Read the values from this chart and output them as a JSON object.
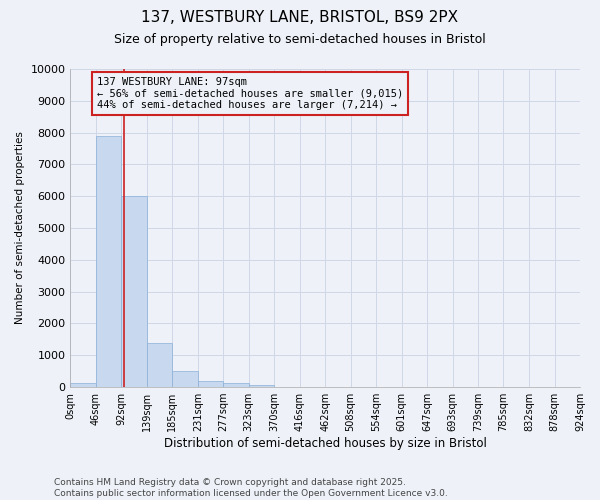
{
  "title_line1": "137, WESTBURY LANE, BRISTOL, BS9 2PX",
  "title_line2": "Size of property relative to semi-detached houses in Bristol",
  "xlabel": "Distribution of semi-detached houses by size in Bristol",
  "ylabel": "Number of semi-detached properties",
  "annotation_text": "137 WESTBURY LANE: 97sqm\n← 56% of semi-detached houses are smaller (9,015)\n44% of semi-detached houses are larger (7,214) →",
  "bin_edges": [
    0,
    46,
    92,
    139,
    185,
    231,
    277,
    323,
    370,
    416,
    462,
    508,
    554,
    601,
    647,
    693,
    739,
    785,
    832,
    878,
    924
  ],
  "bin_labels": [
    "0sqm",
    "46sqm",
    "92sqm",
    "139sqm",
    "185sqm",
    "231sqm",
    "277sqm",
    "323sqm",
    "370sqm",
    "416sqm",
    "462sqm",
    "508sqm",
    "554sqm",
    "601sqm",
    "647sqm",
    "693sqm",
    "739sqm",
    "785sqm",
    "832sqm",
    "878sqm",
    "924sqm"
  ],
  "bar_heights": [
    130,
    7900,
    6000,
    1380,
    500,
    200,
    130,
    60,
    0,
    0,
    0,
    0,
    0,
    0,
    0,
    0,
    0,
    0,
    0,
    0
  ],
  "bar_color": "#c8d8ee",
  "bar_edge_color": "#8ab0d8",
  "red_line_x": 97,
  "ylim": [
    0,
    10000
  ],
  "yticks": [
    0,
    1000,
    2000,
    3000,
    4000,
    5000,
    6000,
    7000,
    8000,
    9000,
    10000
  ],
  "grid_color": "#d0d8e8",
  "background_color": "#eef2f8",
  "plot_bg_color": "#eef2f8",
  "box_color": "#cc2222",
  "footer": "Contains HM Land Registry data © Crown copyright and database right 2025.\nContains public sector information licensed under the Open Government Licence v3.0."
}
